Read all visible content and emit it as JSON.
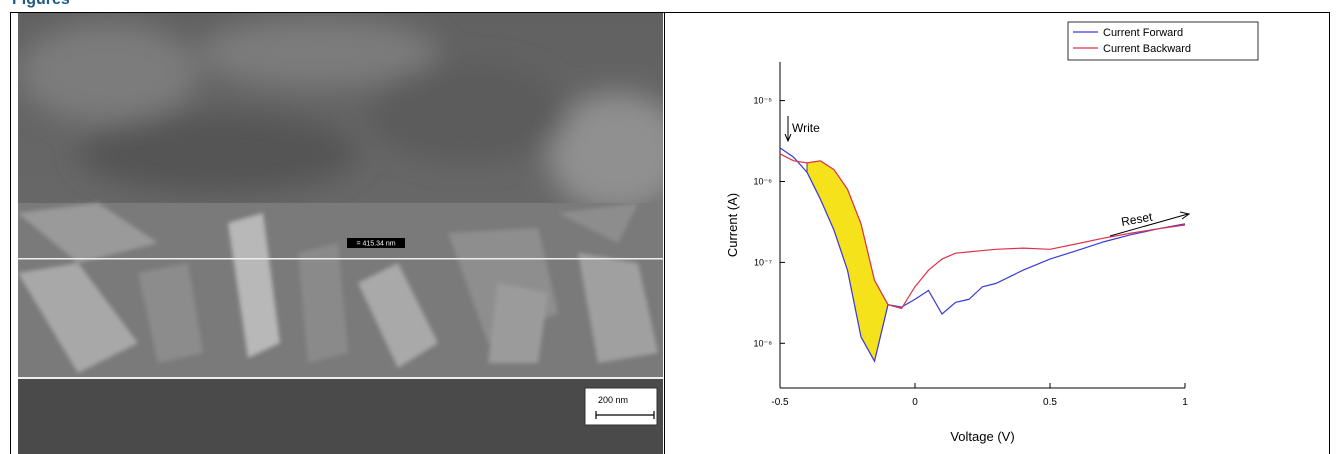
{
  "header": {
    "title": "Figures"
  },
  "sem_image": {
    "measurement": "= 415.34 nm",
    "scale_bar": "200 nm"
  },
  "chart_data": {
    "type": "line",
    "x_label": "Voltage (V)",
    "y_label": "Current (A)",
    "x": [
      -0.5,
      -0.45,
      -0.4,
      -0.35,
      -0.3,
      -0.25,
      -0.2,
      -0.15,
      -0.1,
      -0.05,
      0,
      0.05,
      0.1,
      0.15,
      0.2,
      0.25,
      0.3,
      0.4,
      0.5,
      0.6,
      0.7,
      0.8,
      0.9,
      1
    ],
    "series": [
      {
        "name": "Current Forward",
        "color": "#3b3bd6",
        "values": [
          2.6e-06,
          2e-06,
          1.3e-06,
          6e-07,
          2.5e-07,
          8e-08,
          1.2e-08,
          6e-09,
          3e-08,
          2.8e-08,
          3.5e-08,
          4.5e-08,
          2.3e-08,
          3.2e-08,
          3.5e-08,
          5e-08,
          5.5e-08,
          8e-08,
          1.1e-07,
          1.4e-07,
          1.8e-07,
          2.2e-07,
          2.6e-07,
          3e-07
        ]
      },
      {
        "name": "Current Backward",
        "color": "#e0304a",
        "values": [
          2.2e-06,
          1.8e-06,
          1.7e-06,
          1.8e-06,
          1.4e-06,
          8e-07,
          3e-07,
          6e-08,
          3e-08,
          2.7e-08,
          5e-08,
          8e-08,
          1.1e-07,
          1.3e-07,
          1.35e-07,
          1.4e-07,
          1.45e-07,
          1.5e-07,
          1.45e-07,
          1.7e-07,
          2e-07,
          2.3e-07,
          2.6e-07,
          2.9e-07
        ]
      }
    ],
    "fill_color": "#f5e21a",
    "xlim": [
      -0.5,
      1
    ],
    "xticks": [
      -0.5,
      0,
      0.5,
      1
    ],
    "ylim": [
      2.8e-09,
      3e-05
    ],
    "log_y": true,
    "yticks": [
      {
        "value": 1e-08,
        "label": "10⁻⁸"
      },
      {
        "value": 1e-07,
        "label": "10⁻⁷"
      },
      {
        "value": 1e-06,
        "label": "10⁻⁶"
      },
      {
        "value": 1e-05,
        "label": "10⁻⁵"
      }
    ],
    "annotations": [
      "Write",
      "Reset"
    ],
    "legend": "top-right"
  }
}
